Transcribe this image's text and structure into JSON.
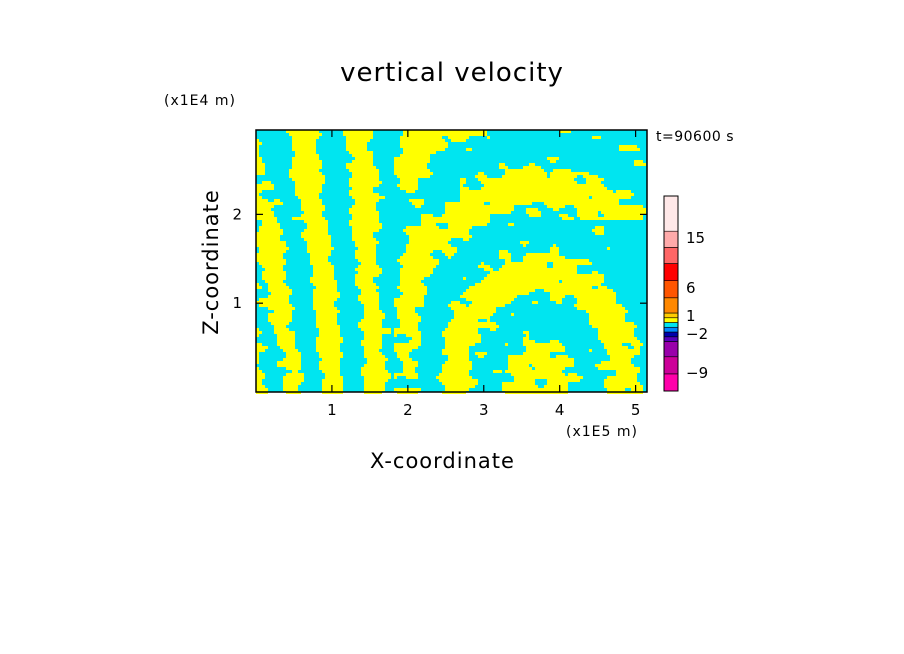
{
  "chart_data": {
    "type": "heatmap",
    "title": "vertical velocity",
    "xlabel": "X-coordinate",
    "ylabel": "Z-coordinate",
    "x_unit": "(x1E5 m)",
    "y_unit": "(x1E4 m)",
    "time_label": "t=90600 s",
    "xlim": [
      0,
      5.15
    ],
    "ylim": [
      0,
      2.95
    ],
    "x_ticks": [
      1,
      2,
      3,
      4,
      5
    ],
    "y_ticks": [
      1,
      2
    ],
    "colorbar": {
      "tick_labels": [
        "15",
        "6",
        "1",
        "-2",
        "-9"
      ],
      "tick_values": [
        15,
        6,
        1,
        -2,
        -9
      ],
      "levels": [
        {
          "color": "#ff00aa"
        },
        {
          "color": "#cc0099"
        },
        {
          "color": "#9900aa"
        },
        {
          "color": "#5500bb"
        },
        {
          "color": "#0000aa"
        },
        {
          "color": "#0088ff"
        },
        {
          "color": "#00e5f0"
        },
        {
          "color": "#ffff00"
        },
        {
          "color": "#ffcc00"
        },
        {
          "color": "#ff8800"
        },
        {
          "color": "#ff5500"
        },
        {
          "color": "#ff0000"
        },
        {
          "color": "#ff6666"
        },
        {
          "color": "#ffaaaa"
        },
        {
          "color": "#ffe8e8"
        }
      ]
    },
    "field_colors": {
      "updraft": "#ffff00",
      "downdraft": "#00e5f0"
    }
  }
}
